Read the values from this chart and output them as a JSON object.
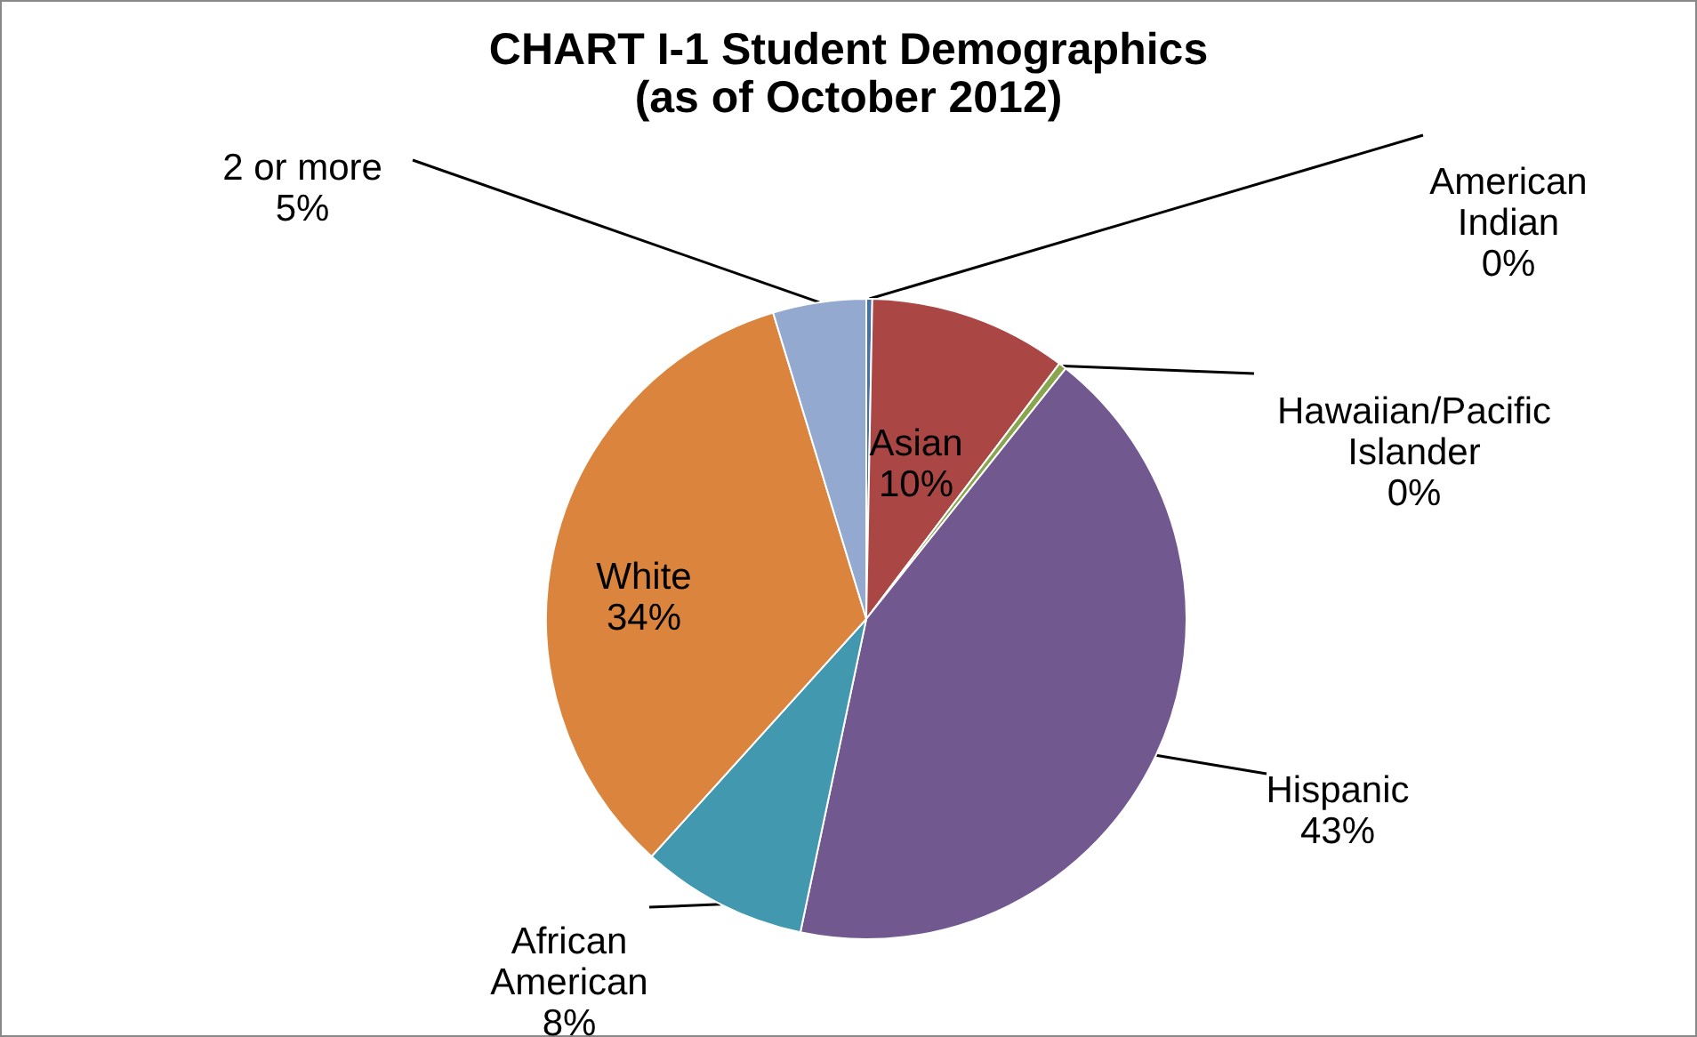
{
  "chart_data": {
    "type": "pie",
    "title": "CHART I-1  Student Demographics",
    "subtitle": "(as of October 2012)",
    "categories": [
      "American Indian",
      "Asian",
      "Hawaiian/Pacific Islander",
      "Hispanic",
      "African American",
      "White",
      "2 or more"
    ],
    "values": [
      0.3,
      10,
      0.4,
      42.6,
      8.4,
      33.6,
      4.7
    ],
    "value_labels": [
      "0%",
      "10%",
      "0%",
      "43%",
      "8%",
      "34%",
      "5%"
    ],
    "colors": [
      "#4572a7",
      "#aa4643",
      "#89a54e",
      "#71588f",
      "#4198af",
      "#db843d",
      "#93a9cf"
    ]
  }
}
